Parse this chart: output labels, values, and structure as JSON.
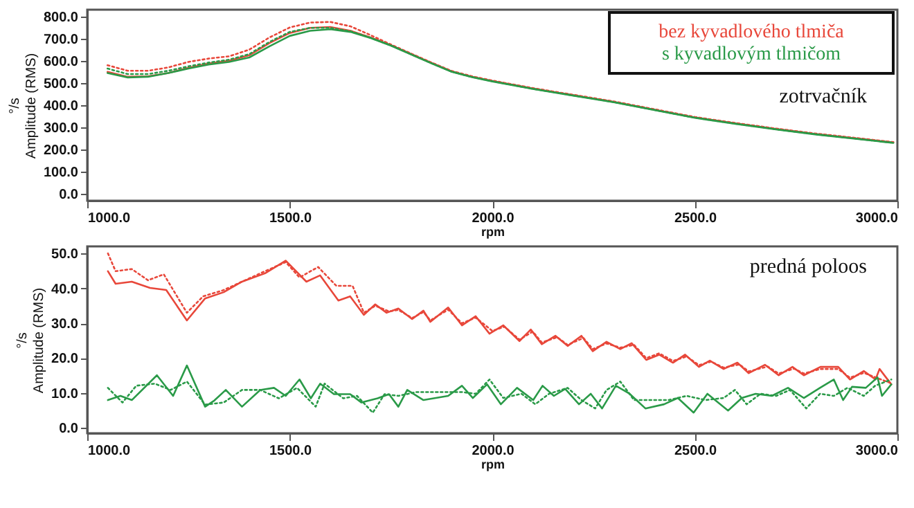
{
  "chart_data": [
    {
      "type": "line",
      "xlabel": "rpm",
      "ylabel": "°/s\nAmplitude (RMS)",
      "annotations": [
        "zotrvačník"
      ],
      "legend": "top right",
      "xlim": [
        1000,
        3000
      ],
      "xticks": [
        {
          "value": 1000,
          "label": "1000.0"
        },
        {
          "value": 1500,
          "label": "1500.0"
        },
        {
          "value": 2000,
          "label": "2000.0"
        },
        {
          "value": 2500,
          "label": "2500.0"
        },
        {
          "value": 3000,
          "label": "3000.0"
        }
      ],
      "ylim": [
        -30,
        830
      ],
      "yticks": [
        {
          "value": 0,
          "label": "0.0"
        },
        {
          "value": 100,
          "label": "100.0"
        },
        {
          "value": 200,
          "label": "200.0"
        },
        {
          "value": 300,
          "label": "300.0"
        },
        {
          "value": 400,
          "label": "400.0"
        },
        {
          "value": 500,
          "label": "500.0"
        },
        {
          "value": 600,
          "label": "600.0"
        },
        {
          "value": 700,
          "label": "700.0"
        },
        {
          "value": 800,
          "label": "800.0"
        }
      ],
      "x": [
        1050,
        1100,
        1150,
        1200,
        1250,
        1300,
        1350,
        1400,
        1450,
        1500,
        1550,
        1600,
        1650,
        1700,
        1750,
        1800,
        1850,
        1900,
        1950,
        2000,
        2100,
        2200,
        2300,
        2400,
        2500,
        2600,
        2700,
        2800,
        2900,
        2990
      ],
      "series": [
        {
          "name": "bez kyvadlového tlmiča",
          "color": "#e8473a",
          "line_style": "solid",
          "values": [
            550,
            528,
            530,
            545,
            568,
            588,
            600,
            625,
            680,
            725,
            748,
            752,
            735,
            705,
            670,
            630,
            590,
            552,
            528,
            509,
            475,
            445,
            415,
            380,
            345,
            318,
            293,
            270,
            250,
            232
          ]
        },
        {
          "color": "#e8473a",
          "line_style": "dotted",
          "values": [
            580,
            555,
            555,
            570,
            595,
            610,
            620,
            650,
            705,
            750,
            772,
            775,
            755,
            715,
            673,
            632,
            592,
            554,
            530,
            511,
            477,
            447,
            417,
            382,
            347,
            320,
            295,
            272,
            252,
            234
          ]
        },
        {
          "name": "s kyvadlovým tlmičom",
          "color": "#2a9a48",
          "line_style": "solid",
          "values": [
            545,
            525,
            528,
            545,
            565,
            583,
            595,
            615,
            665,
            712,
            735,
            742,
            730,
            702,
            668,
            628,
            588,
            550,
            526,
            507,
            473,
            443,
            413,
            378,
            343,
            316,
            291,
            268,
            248,
            230
          ]
        },
        {
          "color": "#2a9a48",
          "line_style": "dotted",
          "values": [
            565,
            540,
            540,
            555,
            575,
            592,
            605,
            630,
            685,
            730,
            748,
            748,
            733,
            703,
            669,
            629,
            589,
            551,
            527,
            508,
            474,
            444,
            414,
            379,
            344,
            317,
            292,
            269,
            249,
            231
          ]
        }
      ]
    },
    {
      "type": "line",
      "xlabel": "rpm",
      "ylabel": "°/s\nAmplitude (RMS)",
      "annotations": [
        "predná poloos"
      ],
      "xlim": [
        1000,
        3000
      ],
      "xticks": [
        {
          "value": 1000,
          "label": "1000.0"
        },
        {
          "value": 1500,
          "label": "1500.0"
        },
        {
          "value": 2000,
          "label": "2000.0"
        },
        {
          "value": 2500,
          "label": "2500.0"
        },
        {
          "value": 3000,
          "label": "3000.0"
        }
      ],
      "ylim": [
        -1.5,
        52
      ],
      "yticks": [
        {
          "value": 0,
          "label": "0.0"
        },
        {
          "value": 10,
          "label": "10.0"
        },
        {
          "value": 20,
          "label": "20.0"
        },
        {
          "value": 30,
          "label": "30.0"
        },
        {
          "value": 40,
          "label": "40.0"
        },
        {
          "value": 50,
          "label": "50.0"
        }
      ],
      "series": [
        {
          "color": "#e8473a",
          "line_style": "solid",
          "x": [
            1051,
            1070,
            1110,
            1155,
            1195,
            1246,
            1291,
            1337,
            1382,
            1439,
            1490,
            1541,
            1575,
            1620,
            1649,
            1683,
            1711,
            1739,
            1768,
            1802,
            1830,
            1847,
            1891,
            1925,
            1959,
            1993,
            2027,
            2067,
            2095,
            2122,
            2156,
            2186,
            2220,
            2248,
            2282,
            2316,
            2344,
            2380,
            2412,
            2446,
            2476,
            2510,
            2537,
            2571,
            2605,
            2633,
            2673,
            2707,
            2741,
            2769,
            2810,
            2854,
            2883,
            2917,
            2946,
            2956,
            2985
          ],
          "values": [
            44.9,
            41.3,
            41.9,
            40.1,
            39.5,
            30.8,
            37.1,
            38.9,
            41.9,
            44.3,
            47.9,
            41.9,
            43.7,
            36.5,
            37.7,
            32.4,
            35.4,
            33,
            34.2,
            31.2,
            33.6,
            30.4,
            34.5,
            29.4,
            32,
            27,
            29.4,
            24.9,
            28.2,
            24,
            26.4,
            23.5,
            26.4,
            22,
            24.7,
            22.6,
            24.3,
            19.5,
            21,
            18.7,
            21,
            17.5,
            19.3,
            16.9,
            18.7,
            15.7,
            18.1,
            15.1,
            17.5,
            15.1,
            17.5,
            17.5,
            13.9,
            16.3,
            13.9,
            16.9,
            12.5
          ]
        },
        {
          "color": "#e8473a",
          "line_style": "dotted",
          "x": [
            1051,
            1070,
            1110,
            1150,
            1189,
            1246,
            1286,
            1337,
            1382,
            1439,
            1490,
            1524,
            1570,
            1615,
            1655,
            1683,
            1711,
            1745,
            1768,
            1802,
            1830,
            1847,
            1891,
            1925,
            1959,
            2000,
            2030,
            2067,
            2100,
            2122,
            2160,
            2186,
            2225,
            2248,
            2282,
            2316,
            2350,
            2380,
            2412,
            2446,
            2480,
            2510,
            2540,
            2571,
            2610,
            2633,
            2680,
            2707,
            2745,
            2769,
            2810,
            2854,
            2883,
            2917,
            2946,
            2985
          ],
          "values": [
            50,
            44.9,
            45.5,
            42.3,
            44,
            33,
            37.7,
            39.5,
            41.9,
            44.9,
            47.5,
            43.1,
            46.1,
            40.7,
            40.7,
            33,
            35,
            33.4,
            33.8,
            31.5,
            33.2,
            30.8,
            33.9,
            30,
            31.6,
            27.8,
            29,
            25.3,
            27.6,
            24.5,
            26,
            23.8,
            25.8,
            22.6,
            24.2,
            23,
            23.8,
            20,
            21.4,
            19.2,
            20.5,
            18,
            19,
            17.3,
            18.2,
            16.2,
            17.6,
            15.6,
            17,
            15.6,
            16.9,
            16.9,
            14.4,
            15.8,
            14.5,
            12.8
          ]
        },
        {
          "color": "#2a9a48",
          "line_style": "solid",
          "x": [
            1051,
            1082,
            1110,
            1172,
            1212,
            1246,
            1291,
            1314,
            1342,
            1382,
            1427,
            1461,
            1490,
            1524,
            1552,
            1575,
            1609,
            1649,
            1677,
            1717,
            1745,
            1768,
            1790,
            1830,
            1891,
            1925,
            1952,
            1987,
            2021,
            2061,
            2101,
            2124,
            2152,
            2180,
            2214,
            2243,
            2271,
            2305,
            2339,
            2378,
            2424,
            2458,
            2497,
            2531,
            2582,
            2616,
            2650,
            2690,
            2730,
            2769,
            2809,
            2843,
            2866,
            2888,
            2922,
            2951,
            2962,
            2985
          ],
          "values": [
            8,
            9.2,
            8,
            15.1,
            9.2,
            17.9,
            6.1,
            7.9,
            10.9,
            6.1,
            10.9,
            11.5,
            9.2,
            13.9,
            8.5,
            12.7,
            9.7,
            9.7,
            7.3,
            8.5,
            9.7,
            6.1,
            10.9,
            8,
            9.2,
            12.1,
            8.6,
            12.5,
            6.8,
            11.5,
            8,
            12.1,
            9.2,
            11.2,
            6.8,
            9.8,
            5.6,
            12.1,
            9.8,
            5.6,
            6.8,
            8.6,
            4.4,
            9.8,
            5,
            8.6,
            9.8,
            9.2,
            11.5,
            8.6,
            11.5,
            13.9,
            8,
            11.8,
            11.5,
            14.5,
            9.2,
            12.5
          ]
        },
        {
          "color": "#2a9a48",
          "line_style": "dotted",
          "x": [
            1051,
            1087,
            1121,
            1167,
            1206,
            1246,
            1291,
            1337,
            1382,
            1427,
            1473,
            1518,
            1564,
            1586,
            1632,
            1666,
            1705,
            1734,
            1768,
            1813,
            1887,
            1925,
            1959,
            1993,
            2027,
            2072,
            2106,
            2140,
            2186,
            2220,
            2254,
            2282,
            2316,
            2350,
            2390,
            2435,
            2480,
            2526,
            2571,
            2599,
            2628,
            2662,
            2701,
            2735,
            2775,
            2809,
            2843,
            2877,
            2917,
            2945,
            2985
          ],
          "values": [
            11.5,
            7.3,
            12.1,
            12.7,
            10.9,
            13.3,
            6.7,
            7.3,
            10.9,
            10.9,
            8.5,
            11.5,
            6.1,
            12.7,
            8.5,
            9.2,
            4.4,
            9.7,
            9.2,
            10.3,
            10.3,
            10.3,
            9.8,
            13.9,
            8.6,
            9.8,
            6.8,
            9.8,
            11.5,
            8,
            5.6,
            10.9,
            13.3,
            8,
            8,
            8,
            9.2,
            8,
            8.6,
            10.9,
            6.8,
            9.8,
            9.2,
            10.9,
            5.6,
            9.8,
            9.2,
            11.5,
            9.2,
            12.1,
            13.9
          ]
        }
      ]
    }
  ]
}
